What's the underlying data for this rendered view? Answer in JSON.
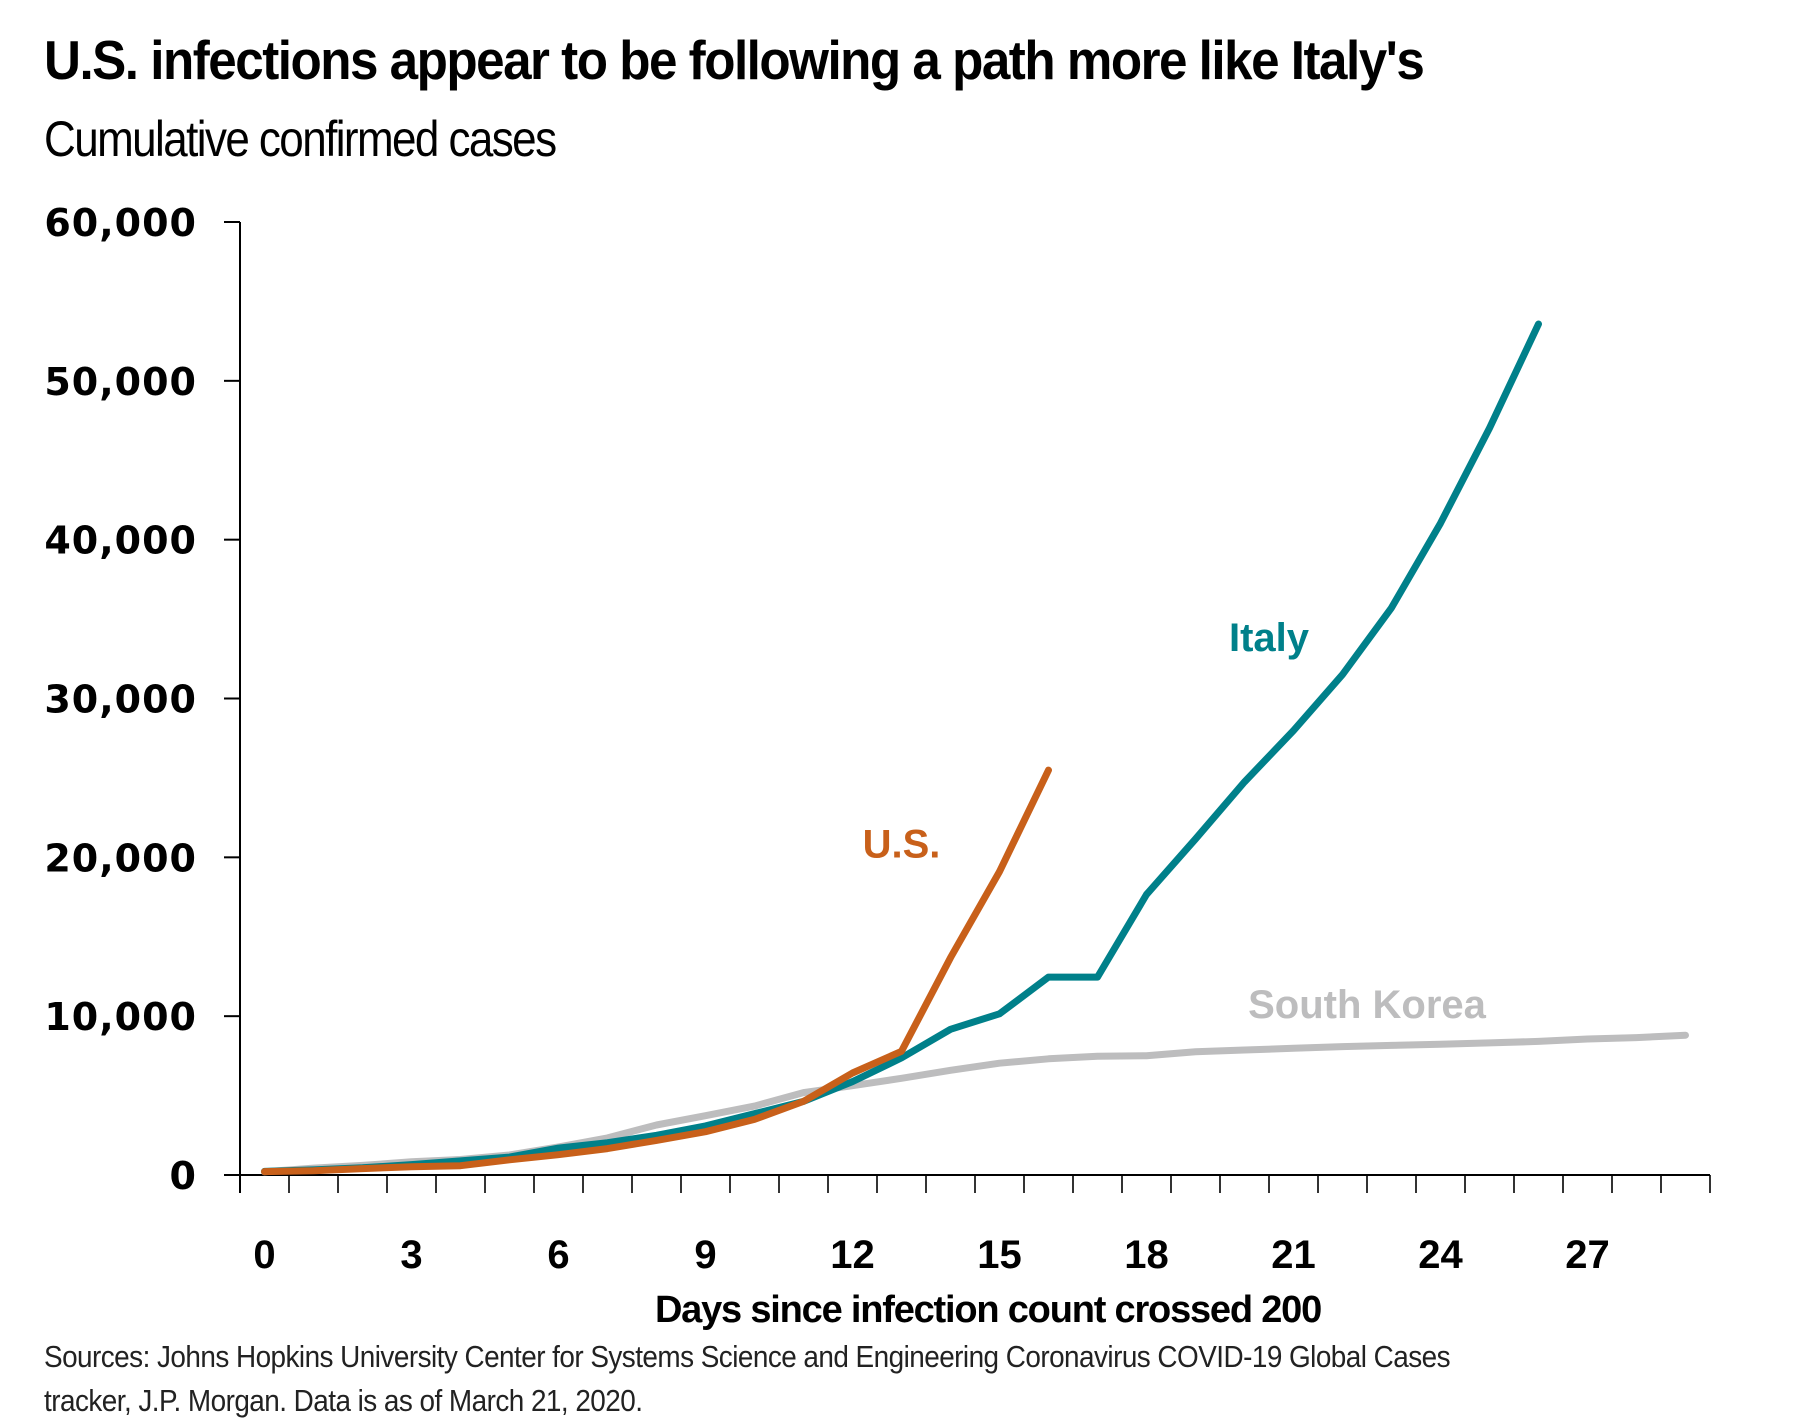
{
  "header": {
    "title": "U.S. infections appear to be following a path more like Italy's",
    "subtitle": "Cumulative confirmed cases"
  },
  "footer": {
    "source_line1": "Sources: Johns Hopkins University Center for Systems Science and Engineering Coronavirus COVID-19 Global Cases",
    "source_line2": "tracker, J.P. Morgan. Data is as of March 21, 2020."
  },
  "chart_data": {
    "type": "line",
    "title": "U.S. infections appear to be following a path more like Italy's",
    "subtitle": "Cumulative confirmed cases",
    "xlabel": "Days since infection count crossed 200",
    "ylabel": "",
    "xlim": [
      -0.5,
      29.5
    ],
    "ylim": [
      0,
      60000
    ],
    "xticks": [
      0,
      3,
      6,
      9,
      12,
      15,
      18,
      21,
      24,
      27
    ],
    "xtick_labels": [
      "0",
      "3",
      "6",
      "9",
      "12",
      "15",
      "18",
      "21",
      "24",
      "27"
    ],
    "yticks": [
      0,
      10000,
      20000,
      30000,
      40000,
      50000,
      60000
    ],
    "ytick_labels": [
      "0",
      "10,000",
      "20,000",
      "30,000",
      "40,000",
      "50,000",
      "60,000"
    ],
    "grid": false,
    "legend": "inline labels",
    "series": [
      {
        "name": "South Korea",
        "color": "#bdbdbe",
        "x": [
          0,
          1,
          2,
          3,
          4,
          5,
          6,
          7,
          8,
          9,
          10,
          11,
          12,
          13,
          14,
          15,
          16,
          17,
          18,
          19,
          20,
          21,
          22,
          23,
          24,
          25,
          26,
          27,
          28,
          29
        ],
        "values": [
          204,
          433,
          602,
          833,
          977,
          1261,
          1766,
          2337,
          3150,
          3736,
          4335,
          5186,
          5621,
          6088,
          6593,
          7041,
          7314,
          7478,
          7513,
          7755,
          7869,
          7979,
          8086,
          8162,
          8236,
          8320,
          8413,
          8565,
          8652,
          8799
        ]
      },
      {
        "name": "Italy",
        "color": "#00808a",
        "x": [
          0,
          1,
          2,
          3,
          4,
          5,
          6,
          7,
          8,
          9,
          10,
          11,
          12,
          13,
          14,
          15,
          16,
          17,
          18,
          19,
          20,
          21,
          22,
          23,
          24,
          25,
          26
        ],
        "values": [
          229,
          322,
          453,
          655,
          888,
          1128,
          1694,
          2036,
          2502,
          3089,
          3858,
          4636,
          5883,
          7375,
          9172,
          10149,
          12462,
          12462,
          17660,
          21157,
          24747,
          27980,
          31506,
          35713,
          41035,
          47021,
          53578
        ]
      },
      {
        "name": "U.S.",
        "color": "#c8601a",
        "x": [
          0,
          1,
          2,
          3,
          4,
          5,
          6,
          7,
          8,
          9,
          10,
          11,
          12,
          13,
          14,
          15,
          16
        ],
        "values": [
          217,
          262,
          402,
          518,
          583,
          959,
          1281,
          1663,
          2179,
          2726,
          3499,
          4632,
          6421,
          7786,
          13680,
          19101,
          25493
        ]
      }
    ],
    "annotations": [
      {
        "text": "Italy",
        "series": "Italy",
        "x": 20.5,
        "y": 33000
      },
      {
        "text": "U.S.",
        "series": "U.S.",
        "x": 13,
        "y": 20000
      },
      {
        "text": "South Korea",
        "series": "South Korea",
        "x": 22.5,
        "y": 9900
      }
    ]
  }
}
